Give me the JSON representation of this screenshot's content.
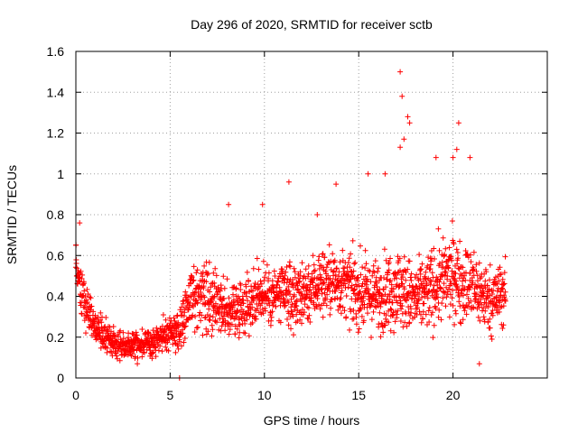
{
  "chart_data": {
    "type": "scatter",
    "title": "Day 296 of 2020, SRMTID for receiver sctb",
    "xlabel": "GPS time / hours",
    "ylabel": "SRMTID / TECUs",
    "xlim": [
      0,
      25
    ],
    "ylim": [
      0,
      1.6
    ],
    "xticks": [
      0,
      5,
      10,
      15,
      20
    ],
    "xtick_labels": [
      "0",
      "5",
      "10",
      "15",
      "20"
    ],
    "yticks": [
      0,
      0.2,
      0.4,
      0.6,
      0.8,
      1.0,
      1.2,
      1.4,
      1.6
    ],
    "ytick_labels": [
      "0",
      "0.2",
      "0.4",
      "0.6",
      "0.8",
      "1",
      "1.2",
      "1.4",
      "1.6"
    ],
    "grid": true,
    "marker": "plus",
    "color": "#ff0000",
    "series": [
      {
        "name": "SRMTID",
        "envelope_hours": [
          0,
          0.3,
          1,
          2,
          3,
          4,
          5,
          5.5,
          6,
          7,
          8,
          9,
          10,
          11,
          12,
          13,
          14,
          15,
          16,
          17,
          18,
          19,
          20,
          21,
          22,
          22.8
        ],
        "envelope_median": [
          0.58,
          0.42,
          0.25,
          0.17,
          0.16,
          0.17,
          0.22,
          0.23,
          0.4,
          0.38,
          0.32,
          0.36,
          0.42,
          0.4,
          0.41,
          0.47,
          0.47,
          0.42,
          0.4,
          0.45,
          0.38,
          0.45,
          0.5,
          0.45,
          0.38,
          0.42
        ],
        "envelope_spread": [
          0.08,
          0.09,
          0.06,
          0.05,
          0.05,
          0.05,
          0.06,
          0.08,
          0.12,
          0.12,
          0.1,
          0.11,
          0.12,
          0.12,
          0.12,
          0.13,
          0.12,
          0.13,
          0.13,
          0.15,
          0.13,
          0.15,
          0.15,
          0.14,
          0.12,
          0.12
        ],
        "outliers": [
          {
            "x": 17.2,
            "y": 1.5
          },
          {
            "x": 17.3,
            "y": 1.38
          },
          {
            "x": 17.6,
            "y": 1.28
          },
          {
            "x": 17.7,
            "y": 1.25
          },
          {
            "x": 17.4,
            "y": 1.17
          },
          {
            "x": 17.2,
            "y": 1.13
          },
          {
            "x": 20.3,
            "y": 1.25
          },
          {
            "x": 20.2,
            "y": 1.12
          },
          {
            "x": 20.0,
            "y": 1.08
          },
          {
            "x": 19.1,
            "y": 1.08
          },
          {
            "x": 20.9,
            "y": 1.08
          },
          {
            "x": 15.5,
            "y": 1.0
          },
          {
            "x": 16.4,
            "y": 1.0
          },
          {
            "x": 11.3,
            "y": 0.96
          },
          {
            "x": 13.8,
            "y": 0.95
          },
          {
            "x": 8.1,
            "y": 0.85
          },
          {
            "x": 9.9,
            "y": 0.85
          },
          {
            "x": 12.8,
            "y": 0.8
          },
          {
            "x": 0.2,
            "y": 0.76
          },
          {
            "x": 0.0,
            "y": 0.65
          },
          {
            "x": 5.5,
            "y": 0.0
          },
          {
            "x": 21.4,
            "y": 0.07
          }
        ]
      }
    ]
  }
}
